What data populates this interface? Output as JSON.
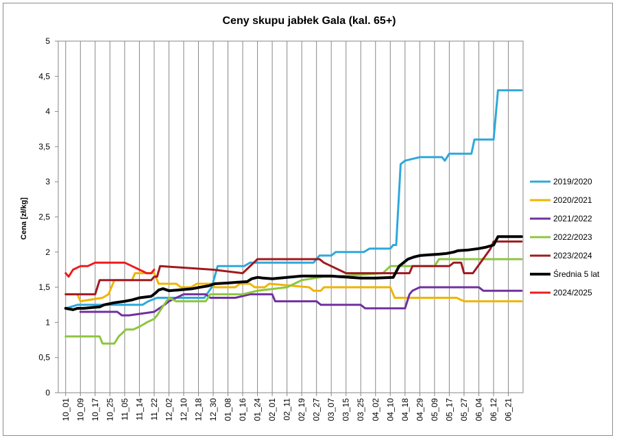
{
  "chart_data": {
    "type": "line",
    "title": "Ceny skupu jabłek Gala (kal. 65+)",
    "xlabel": "",
    "ylabel": "Cena [zł/kg]",
    "ylim": [
      0,
      5
    ],
    "yticks": [
      "0",
      "0,5",
      "1",
      "1,5",
      "2",
      "2,5",
      "3",
      "3,5",
      "4",
      "4,5",
      "5"
    ],
    "grid": "vertical",
    "legend_position": "right",
    "x_tick_labels": [
      "10_01",
      "10_09",
      "10_17",
      "10_25",
      "11_05",
      "11_14",
      "11_22",
      "12_02",
      "12_10",
      "12_18",
      "12_30",
      "01_08",
      "01_16",
      "01_24",
      "02_01",
      "02_11",
      "02_19",
      "02_27",
      "03_07",
      "03_15",
      "03_25",
      "04_02",
      "04_10",
      "04_18",
      "04_29",
      "05_09",
      "05_17",
      "05_27",
      "06_04",
      "06_12",
      "06_21"
    ],
    "series": [
      {
        "name": "2019/2020",
        "color": "#2ea8db",
        "width": 3,
        "x": [
          1.0,
          1.8,
          6.2,
          6.6,
          7.2,
          10.4,
          10.9,
          11.3,
          13.1,
          13.5,
          17.8,
          18.2,
          19.0,
          19.3,
          21.2,
          21.6,
          23.0,
          23.2,
          23.4,
          23.7,
          24.0,
          25.0,
          26.5,
          26.7,
          27.0,
          28.5,
          28.7,
          30.0,
          30.3,
          31.9
        ],
        "y": [
          1.2,
          1.25,
          1.25,
          1.3,
          1.35,
          1.35,
          1.5,
          1.8,
          1.8,
          1.85,
          1.85,
          1.95,
          1.95,
          2.0,
          2.0,
          2.05,
          2.05,
          2.1,
          2.1,
          3.25,
          3.3,
          3.35,
          3.35,
          3.3,
          3.4,
          3.4,
          3.6,
          3.6,
          4.3,
          4.3
        ]
      },
      {
        "name": "2020/2021",
        "color": "#f0b400",
        "width": 3,
        "x": [
          1.0,
          1.8,
          2.0,
          3.5,
          3.9,
          4.3,
          5.5,
          5.7,
          7.0,
          7.3,
          8.5,
          8.8,
          9.5,
          9.9,
          10.9,
          11.1,
          12.5,
          12.8,
          13.5,
          13.8,
          14.5,
          14.8,
          17.5,
          17.8,
          18.3,
          18.5,
          23.0,
          23.3,
          27.5,
          28.0,
          31.9
        ],
        "y": [
          1.4,
          1.4,
          1.3,
          1.35,
          1.4,
          1.6,
          1.6,
          1.7,
          1.7,
          1.55,
          1.55,
          1.5,
          1.5,
          1.55,
          1.55,
          1.5,
          1.5,
          1.55,
          1.55,
          1.5,
          1.5,
          1.55,
          1.5,
          1.45,
          1.45,
          1.5,
          1.5,
          1.35,
          1.35,
          1.3,
          1.3
        ]
      },
      {
        "name": "2021/2022",
        "color": "#7030a0",
        "width": 3,
        "x": [
          2.0,
          4.5,
          4.8,
          5.3,
          7.0,
          7.7,
          8.0,
          8.5,
          9.0,
          10.5,
          10.8,
          12.5,
          13.5,
          14.0,
          15.0,
          15.2,
          18.0,
          18.3,
          21.0,
          21.3,
          24.0,
          24.3,
          24.5,
          25.0,
          28.0,
          29.0,
          29.3,
          31.9
        ],
        "y": [
          1.15,
          1.15,
          1.1,
          1.1,
          1.15,
          1.25,
          1.3,
          1.35,
          1.4,
          1.4,
          1.35,
          1.35,
          1.4,
          1.4,
          1.4,
          1.3,
          1.3,
          1.25,
          1.25,
          1.2,
          1.2,
          1.4,
          1.45,
          1.5,
          1.5,
          1.5,
          1.45,
          1.45
        ]
      },
      {
        "name": "2022/2023",
        "color": "#8cc63f",
        "width": 3,
        "x": [
          1.0,
          3.3,
          3.5,
          4.3,
          4.6,
          5.1,
          5.6,
          6.1,
          6.5,
          7.0,
          7.2,
          7.5,
          8.0,
          8.5,
          10.5,
          10.8,
          13.0,
          14.0,
          16.0,
          16.5,
          17.0,
          18.5,
          19.0,
          22.5,
          23.0,
          26.0,
          26.3,
          31.9
        ],
        "y": [
          0.8,
          0.8,
          0.7,
          0.7,
          0.8,
          0.9,
          0.9,
          0.95,
          1.0,
          1.05,
          1.1,
          1.2,
          1.35,
          1.3,
          1.3,
          1.4,
          1.4,
          1.45,
          1.5,
          1.55,
          1.6,
          1.65,
          1.65,
          1.7,
          1.8,
          1.8,
          1.9,
          1.9
        ]
      },
      {
        "name": "2023/2024",
        "color": "#a0191e",
        "width": 3,
        "x": [
          1.0,
          3.0,
          3.3,
          6.8,
          7.0,
          7.2,
          7.4,
          11.0,
          13.0,
          14.0,
          18.2,
          18.5,
          20.0,
          20.5,
          24.3,
          24.5,
          27.0,
          27.3,
          27.8,
          28.0,
          28.6,
          29.8,
          30.0,
          31.9
        ],
        "y": [
          1.4,
          1.4,
          1.6,
          1.6,
          1.65,
          1.65,
          1.8,
          1.75,
          1.7,
          1.9,
          1.9,
          1.85,
          1.7,
          1.7,
          1.7,
          1.8,
          1.8,
          1.85,
          1.85,
          1.7,
          1.7,
          2.05,
          2.15,
          2.15
        ]
      },
      {
        "name": "Średnia 5 lat",
        "color": "#000000",
        "width": 4,
        "x": [
          1.0,
          1.5,
          1.8,
          2.2,
          3.3,
          3.6,
          4.3,
          5.0,
          5.5,
          6.0,
          6.8,
          7.1,
          7.3,
          7.6,
          8.0,
          8.6,
          9.6,
          10.1,
          10.7,
          11.1,
          12.0,
          12.6,
          13.3,
          13.6,
          14.0,
          14.4,
          15.0,
          16.0,
          16.5,
          17.0,
          18.2,
          19.0,
          19.6,
          20.3,
          21.0,
          22.0,
          23.2,
          23.6,
          24.2,
          24.6,
          25.0,
          25.6,
          26.3,
          26.8,
          27.3,
          27.6,
          28.3,
          29.0,
          29.5,
          30.0,
          30.3,
          31.9
        ],
        "y": [
          1.2,
          1.18,
          1.2,
          1.2,
          1.22,
          1.25,
          1.28,
          1.3,
          1.32,
          1.35,
          1.37,
          1.42,
          1.46,
          1.48,
          1.45,
          1.46,
          1.48,
          1.5,
          1.52,
          1.55,
          1.56,
          1.57,
          1.58,
          1.62,
          1.64,
          1.63,
          1.62,
          1.64,
          1.65,
          1.66,
          1.66,
          1.66,
          1.65,
          1.64,
          1.63,
          1.63,
          1.64,
          1.8,
          1.9,
          1.93,
          1.95,
          1.96,
          1.97,
          1.98,
          2.0,
          2.02,
          2.03,
          2.05,
          2.07,
          2.1,
          2.22,
          2.22
        ]
      },
      {
        "name": "2024/2025",
        "color": "#ee1c1c",
        "width": 3,
        "x": [
          1.0,
          1.2,
          1.5,
          2.0,
          2.5,
          3.0,
          3.5,
          4.0,
          5.0,
          5.5,
          6.0,
          6.5,
          6.8,
          7.0
        ],
        "y": [
          1.7,
          1.65,
          1.75,
          1.8,
          1.8,
          1.85,
          1.85,
          1.85,
          1.85,
          1.8,
          1.75,
          1.7,
          1.7,
          1.75
        ]
      }
    ]
  }
}
